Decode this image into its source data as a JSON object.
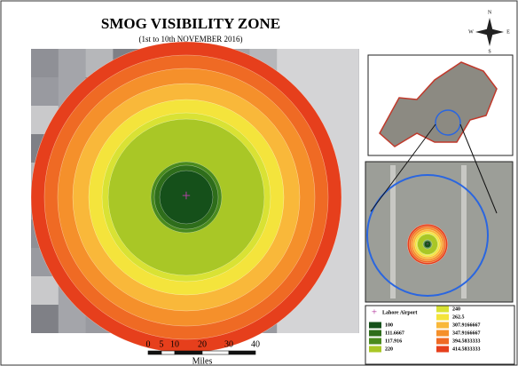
{
  "header": {
    "title": "SMOG VISIBILITY ZONE",
    "subtitle": "(1st to 10th NOVEMBER 2016)"
  },
  "compass": {
    "n": "N",
    "s": "S",
    "e": "E",
    "w": "W"
  },
  "scale_bar": {
    "ticks": [
      "0",
      "5",
      "10",
      "20",
      "30",
      "40"
    ],
    "unit": "Miles"
  },
  "legend": {
    "marker": "Lahore Airport",
    "items": [
      {
        "label": "100",
        "color": "#15501a"
      },
      {
        "label": "111.6667",
        "color": "#2e6d1b"
      },
      {
        "label": "117.916",
        "color": "#4a8a1e"
      },
      {
        "label": "220",
        "color": "#a9c726"
      },
      {
        "label": "240",
        "color": "#d9e234"
      },
      {
        "label": "262.5",
        "color": "#f4e43c"
      },
      {
        "label": "307.9166667",
        "color": "#f9b83a"
      },
      {
        "label": "347.9166667",
        "color": "#f5902b"
      },
      {
        "label": "394.5833333",
        "color": "#ef6a24"
      },
      {
        "label": "414.5833333",
        "color": "#e63f1c"
      }
    ]
  }
}
